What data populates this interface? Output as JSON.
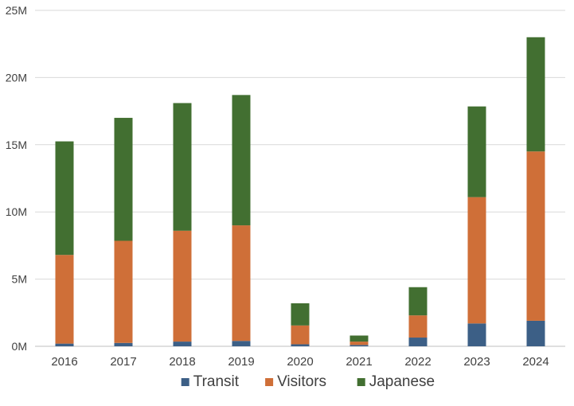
{
  "chart_data": {
    "type": "bar",
    "stacked": true,
    "categories": [
      "2016",
      "2017",
      "2018",
      "2019",
      "2020",
      "2021",
      "2022",
      "2023",
      "2024"
    ],
    "series": [
      {
        "name": "Transit",
        "color": "#3c5f86",
        "values": [
          0.2,
          0.25,
          0.35,
          0.4,
          0.15,
          0.1,
          0.65,
          1.7,
          1.9
        ]
      },
      {
        "name": "Visitors",
        "color": "#cf6f38",
        "values": [
          6.6,
          7.6,
          8.25,
          8.6,
          1.4,
          0.25,
          1.65,
          9.4,
          12.6
        ]
      },
      {
        "name": "Japanese",
        "color": "#426f31",
        "values": [
          8.45,
          9.15,
          9.5,
          9.7,
          1.65,
          0.45,
          2.1,
          6.75,
          8.5
        ]
      }
    ],
    "ylim": [
      0,
      25
    ],
    "yticks": [
      0,
      5,
      10,
      15,
      20,
      25
    ],
    "ytick_labels": [
      "0M",
      "5M",
      "10M",
      "15M",
      "20M",
      "25M"
    ],
    "grid": true,
    "legend_position": "bottom"
  }
}
